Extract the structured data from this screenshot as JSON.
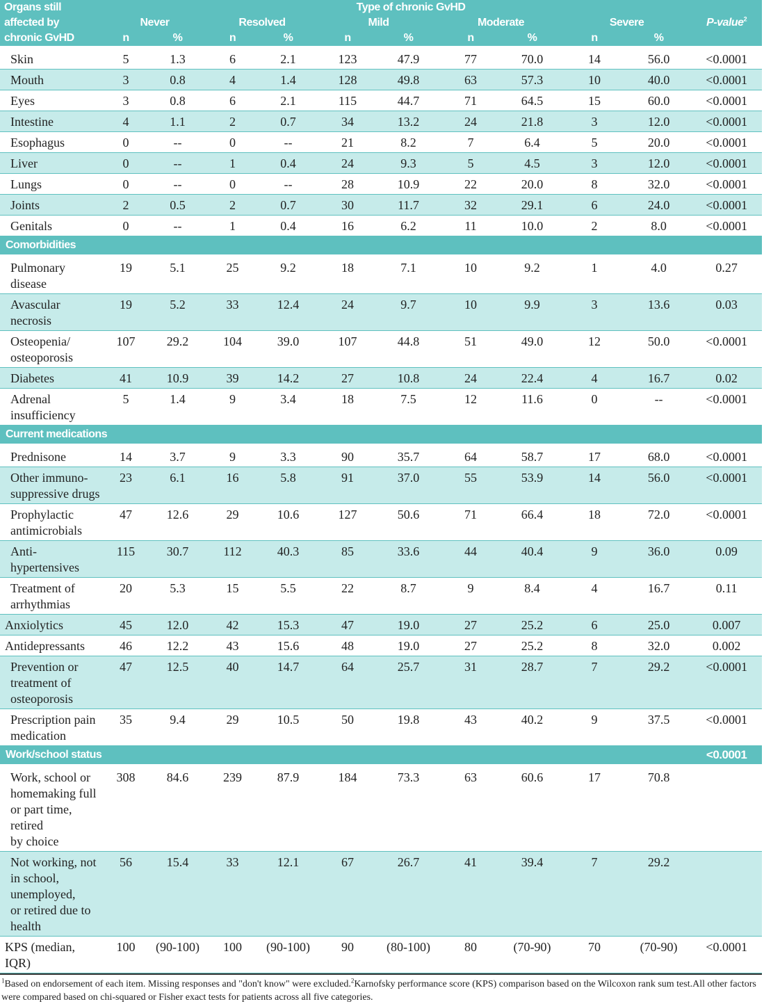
{
  "header": {
    "row_label": [
      "Organs still",
      "affected by",
      "chronic GvHD"
    ],
    "group_title": "Type of chronic GvHD",
    "groups": [
      "Never",
      "Resolved",
      "Mild",
      "Moderate",
      "Severe"
    ],
    "n_label": "n",
    "pct_label": "%",
    "pvalue_label": "P-value",
    "pvalue_sup": "2"
  },
  "sections": [
    {
      "title": null,
      "rows": [
        {
          "label": "Skin",
          "values": [
            "5",
            "1.3",
            "6",
            "2.1",
            "123",
            "47.9",
            "77",
            "70.0",
            "14",
            "56.0",
            "<0.0001"
          ]
        },
        {
          "label": "Mouth",
          "values": [
            "3",
            "0.8",
            "4",
            "1.4",
            "128",
            "49.8",
            "63",
            "57.3",
            "10",
            "40.0",
            "<0.0001"
          ]
        },
        {
          "label": "Eyes",
          "values": [
            "3",
            "0.8",
            "6",
            "2.1",
            "115",
            "44.7",
            "71",
            "64.5",
            "15",
            "60.0",
            "<0.0001"
          ]
        },
        {
          "label": "Intestine",
          "values": [
            "4",
            "1.1",
            "2",
            "0.7",
            "34",
            "13.2",
            "24",
            "21.8",
            "3",
            "12.0",
            "<0.0001"
          ]
        },
        {
          "label": "Esophagus",
          "values": [
            "0",
            "--",
            "0",
            "--",
            "21",
            "8.2",
            "7",
            "6.4",
            "5",
            "20.0",
            "<0.0001"
          ]
        },
        {
          "label": "Liver",
          "values": [
            "0",
            "--",
            "1",
            "0.4",
            "24",
            "9.3",
            "5",
            "4.5",
            "3",
            "12.0",
            "<0.0001"
          ]
        },
        {
          "label": "Lungs",
          "values": [
            "0",
            "--",
            "0",
            "--",
            "28",
            "10.9",
            "22",
            "20.0",
            "8",
            "32.0",
            "<0.0001"
          ]
        },
        {
          "label": "Joints",
          "values": [
            "2",
            "0.5",
            "2",
            "0.7",
            "30",
            "11.7",
            "32",
            "29.1",
            "6",
            "24.0",
            "<0.0001"
          ]
        },
        {
          "label": "Genitals",
          "values": [
            "0",
            "--",
            "1",
            "0.4",
            "16",
            "6.2",
            "11",
            "10.0",
            "2",
            "8.0",
            "<0.0001"
          ]
        }
      ]
    },
    {
      "title": "Comorbidities",
      "rows": [
        {
          "label": "Pulmonary disease",
          "values": [
            "19",
            "5.1",
            "25",
            "9.2",
            "18",
            "7.1",
            "10",
            "9.2",
            "1",
            "4.0",
            "0.27"
          ]
        },
        {
          "label": "Avascular necrosis",
          "values": [
            "19",
            "5.2",
            "33",
            "12.4",
            "24",
            "9.7",
            "10",
            "9.9",
            "3",
            "13.6",
            "0.03"
          ]
        },
        {
          "label": "Osteopenia/\nosteoporosis",
          "values": [
            "107",
            "29.2",
            "104",
            "39.0",
            "107",
            "44.8",
            "51",
            "49.0",
            "12",
            "50.0",
            "<0.0001"
          ]
        },
        {
          "label": "Diabetes",
          "values": [
            "41",
            "10.9",
            "39",
            "14.2",
            "27",
            "10.8",
            "24",
            "22.4",
            "4",
            "16.7",
            "0.02"
          ]
        },
        {
          "label": "Adrenal\ninsufficiency",
          "values": [
            "5",
            "1.4",
            "9",
            "3.4",
            "18",
            "7.5",
            "12",
            "11.6",
            "0",
            "--",
            "<0.0001"
          ]
        }
      ]
    },
    {
      "title": "Current medications",
      "rows": [
        {
          "label": "Prednisone",
          "values": [
            "14",
            "3.7",
            "9",
            "3.3",
            "90",
            "35.7",
            "64",
            "58.7",
            "17",
            "68.0",
            "<0.0001"
          ]
        },
        {
          "label": "Other immuno-\nsuppressive drugs",
          "values": [
            "23",
            "6.1",
            "16",
            "5.8",
            "91",
            "37.0",
            "55",
            "53.9",
            "14",
            "56.0",
            "<0.0001"
          ]
        },
        {
          "label": "Prophylactic\nantimicrobials",
          "values": [
            "47",
            "12.6",
            "29",
            "10.6",
            "127",
            "50.6",
            "71",
            "66.4",
            "18",
            "72.0",
            "<0.0001"
          ]
        },
        {
          "label": "Anti-hypertensives",
          "values": [
            "115",
            "30.7",
            "112",
            "40.3",
            "85",
            "33.6",
            "44",
            "40.4",
            "9",
            "36.0",
            "0.09"
          ]
        },
        {
          "label": "Treatment of\narrhythmias",
          "values": [
            "20",
            "5.3",
            "15",
            "5.5",
            "22",
            "8.7",
            "9",
            "8.4",
            "4",
            "16.7",
            "0.11"
          ]
        },
        {
          "label": "Anxiolytics",
          "values": [
            "45",
            "12.0",
            "42",
            "15.3",
            "47",
            "19.0",
            "27",
            "25.2",
            "6",
            "25.0",
            "0.007"
          ]
        },
        {
          "label": "Antidepressants",
          "values": [
            "46",
            "12.2",
            "43",
            "15.6",
            "48",
            "19.0",
            "27",
            "25.2",
            "8",
            "32.0",
            "0.002"
          ]
        },
        {
          "label": "Prevention or\ntreatment of\nosteoporosis",
          "values": [
            "47",
            "12.5",
            "40",
            "14.7",
            "64",
            "25.7",
            "31",
            "28.7",
            "7",
            "29.2",
            "<0.0001"
          ]
        },
        {
          "label": "Prescription pain\nmedication",
          "values": [
            "35",
            "9.4",
            "29",
            "10.5",
            "50",
            "19.8",
            "43",
            "40.2",
            "9",
            "37.5",
            "<0.0001"
          ]
        }
      ]
    },
    {
      "title": "Work/school status",
      "p": "<0.0001",
      "rows": [
        {
          "label": "Work, school or\nhomemaking full\nor part time, retired\nby choice",
          "values": [
            "308",
            "84.6",
            "239",
            "87.9",
            "184",
            "73.3",
            "63",
            "60.6",
            "17",
            "70.8",
            ""
          ]
        },
        {
          "label": "Not working, not\nin school, unemployed,\nor retired due to health",
          "values": [
            "56",
            "15.4",
            "33",
            "12.1",
            "67",
            "26.7",
            "41",
            "39.4",
            "7",
            "29.2",
            ""
          ]
        },
        {
          "label": "KPS (median, IQR)",
          "values": [
            "100",
            "(90-100)",
            "100",
            "(90-100)",
            "90",
            "(80-100)",
            "80",
            "(70-90)",
            "70",
            "(70-90)",
            "<0.0001"
          ]
        }
      ]
    }
  ],
  "footnote": {
    "sup1": "1",
    "part1": "Based on endorsement of each item. Missing responses and \"don't know\" were excluded.",
    "sup2": "2",
    "part2": "Karnofsky performance score (KPS) comparison based on the Wilcoxon rank sum test.All other factors were compared based on chi-squared or Fisher exact tests for patients across all five categories."
  },
  "colors": {
    "header": "#5ec0bf",
    "alt_row": "#c6ebea"
  }
}
